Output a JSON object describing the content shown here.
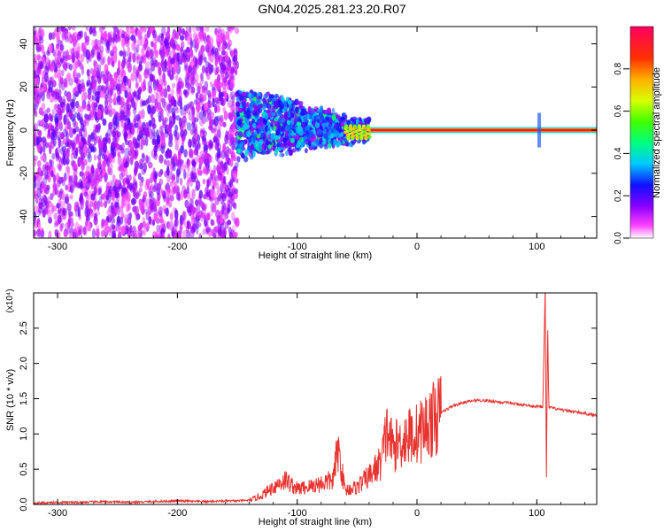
{
  "title": "GN04.2025.281.23.20.R07",
  "chart_data": [
    {
      "type": "heatmap",
      "xlabel": "Height of straight line (km)",
      "ylabel": "Frequency (Hz)",
      "xlim": [
        -320,
        150
      ],
      "ylim": [
        -50,
        48
      ],
      "xticks": [
        -300,
        -200,
        -100,
        0,
        100
      ],
      "yticks": [
        -40,
        -20,
        0,
        20,
        40
      ],
      "colorbar": {
        "label": "Normalized spectral amplitude",
        "range": [
          0.0,
          1.0
        ],
        "ticks": [
          0.0,
          0.2,
          0.4,
          0.6,
          0.8
        ],
        "colormap": [
          "#ffffff",
          "#ff00ff",
          "#5a00ff",
          "#0040ff",
          "#00e0ff",
          "#00ff40",
          "#c0ff00",
          "#ffb000",
          "#ff2000",
          "#ff0040"
        ]
      },
      "features": {
        "noise_band_x": [
          -320,
          -150
        ],
        "transition_x": [
          -150,
          -40
        ],
        "stable_line_x": [
          -40,
          150
        ],
        "stable_line_frequency": 0,
        "spike_x": 102
      }
    },
    {
      "type": "line",
      "xlabel": "Height of straight line (km)",
      "ylabel": "SNR (10 * v/v)",
      "scale_label": "(x10⁴)",
      "xlim": [
        -320,
        150
      ],
      "ylim": [
        0,
        3.0
      ],
      "xticks": [
        -300,
        -200,
        -100,
        0,
        100
      ],
      "yticks": [
        0.0,
        0.5,
        1.0,
        1.5,
        2.0,
        2.5
      ],
      "color": "#e8322e",
      "series": [
        {
          "x": [
            -320,
            -300,
            -280,
            -260,
            -240,
            -220,
            -200,
            -180,
            -160,
            -150,
            -140,
            -130,
            -120,
            -110,
            -100,
            -90,
            -80,
            -70,
            -66,
            -60,
            -50,
            -40,
            -30,
            -25,
            -20,
            -10,
            0,
            10,
            20,
            30,
            40,
            50,
            60,
            70,
            80,
            90,
            100,
            105,
            107,
            108,
            109,
            110,
            115,
            120,
            130,
            140,
            150
          ],
          "y": [
            0.02,
            0.03,
            0.03,
            0.04,
            0.03,
            0.04,
            0.05,
            0.04,
            0.05,
            0.05,
            0.06,
            0.12,
            0.25,
            0.35,
            0.22,
            0.25,
            0.3,
            0.35,
            0.8,
            0.2,
            0.25,
            0.4,
            0.6,
            1.05,
            0.8,
            0.95,
            1.0,
            1.15,
            1.3,
            1.4,
            1.45,
            1.48,
            1.47,
            1.45,
            1.43,
            1.41,
            1.39,
            1.38,
            3.05,
            0.25,
            2.6,
            1.38,
            1.36,
            1.34,
            1.32,
            1.29,
            1.26
          ]
        }
      ]
    }
  ]
}
